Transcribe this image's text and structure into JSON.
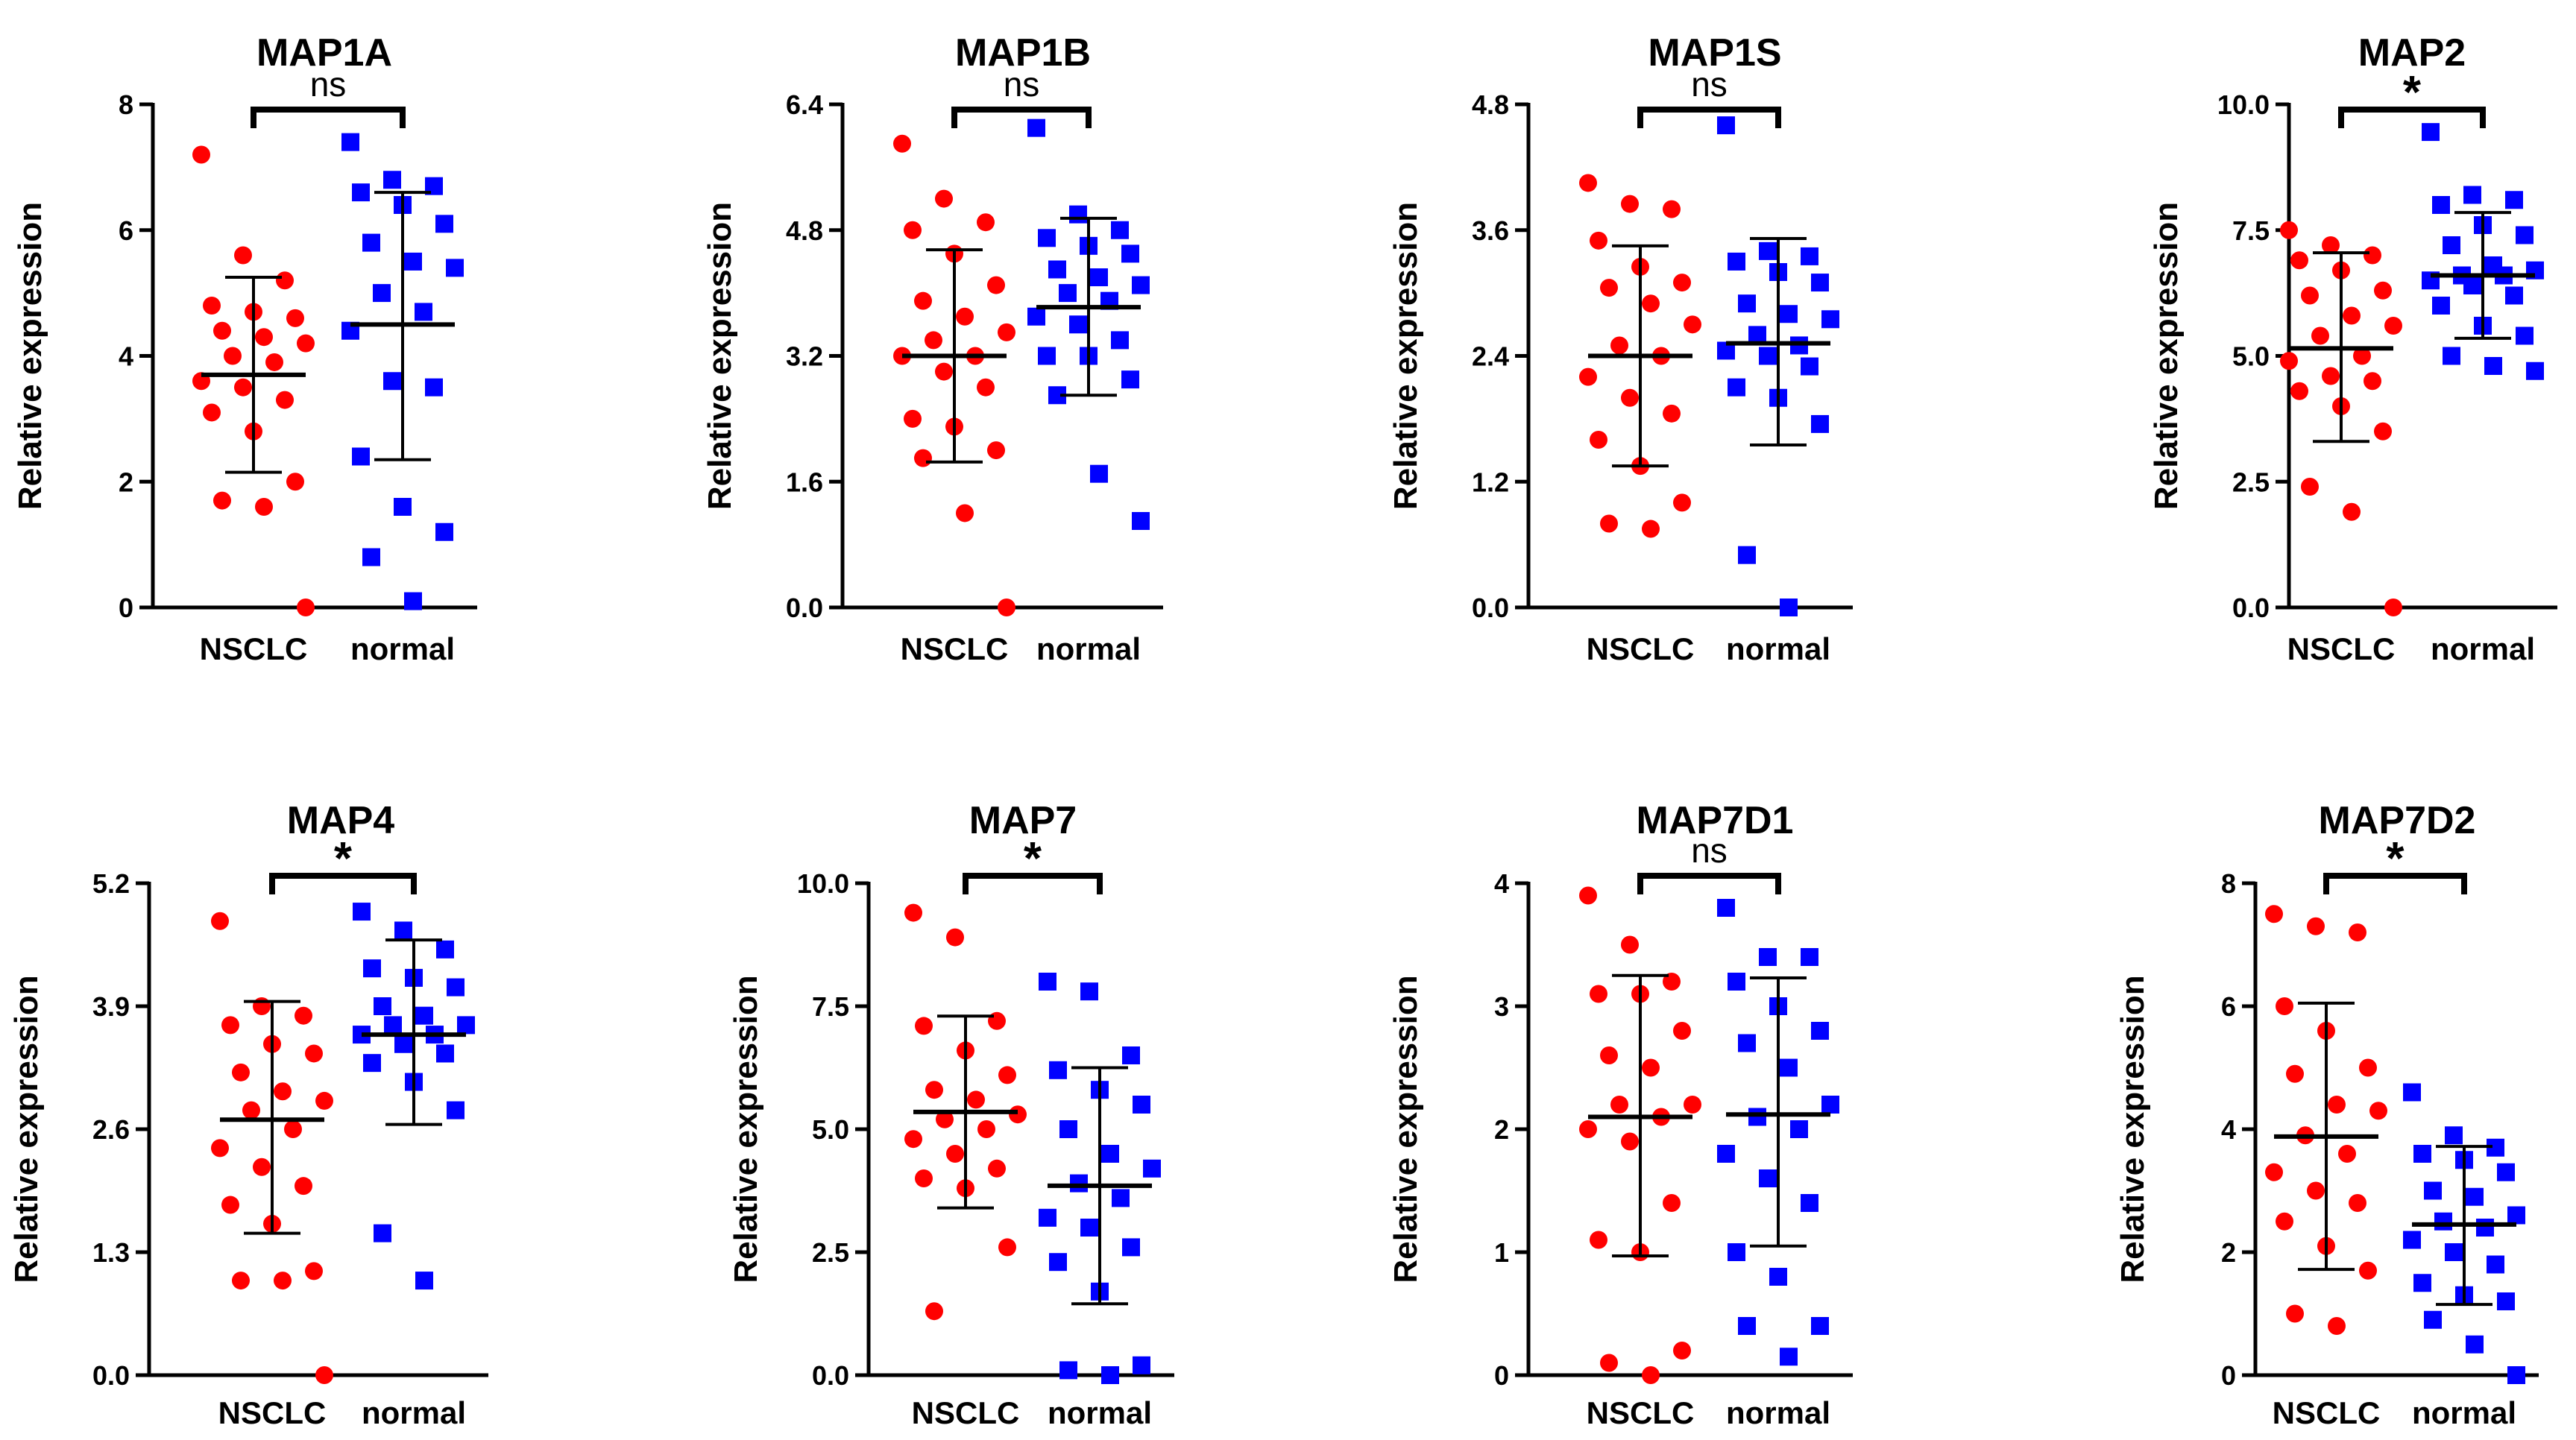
{
  "figure": {
    "y_axis_label": "Relative expression",
    "categories": [
      "NSCLC",
      "normal"
    ]
  },
  "colors": {
    "nsclc": "#ff0000",
    "normal": "#0000ff",
    "axis": "#000000"
  },
  "chart_data": [
    {
      "type": "scatter",
      "title": "MAP1A",
      "significance": "ns",
      "ylim": [
        0,
        8
      ],
      "yticks": [
        "0",
        "2",
        "4",
        "6",
        "8"
      ],
      "ylabel": "Relative expression",
      "categories": [
        "NSCLC",
        "normal"
      ],
      "series": [
        {
          "name": "NSCLC",
          "marker": "circle",
          "mean": 3.7,
          "sd_low": 2.15,
          "sd_high": 5.25,
          "values": [
            7.2,
            5.6,
            5.2,
            4.8,
            4.7,
            4.6,
            4.4,
            4.3,
            4.2,
            4.0,
            3.9,
            3.6,
            3.5,
            3.3,
            3.1,
            2.8,
            2.0,
            1.7,
            1.6,
            0.0
          ]
        },
        {
          "name": "normal",
          "marker": "square",
          "mean": 4.5,
          "sd_low": 2.35,
          "sd_high": 6.6,
          "values": [
            7.4,
            6.8,
            6.7,
            6.6,
            6.4,
            6.1,
            5.8,
            5.5,
            5.4,
            5.0,
            4.7,
            4.4,
            3.6,
            3.5,
            2.4,
            1.6,
            1.2,
            0.8,
            0.1
          ]
        }
      ]
    },
    {
      "type": "scatter",
      "title": "MAP1B",
      "significance": "ns",
      "ylim": [
        0,
        6.4
      ],
      "yticks": [
        "0.0",
        "1.6",
        "3.2",
        "4.8",
        "6.4"
      ],
      "ylabel": "Relative expression",
      "categories": [
        "NSCLC",
        "normal"
      ],
      "series": [
        {
          "name": "NSCLC",
          "marker": "circle",
          "mean": 3.2,
          "sd_low": 1.85,
          "sd_high": 4.55,
          "values": [
            5.9,
            5.2,
            4.9,
            4.8,
            4.5,
            4.1,
            3.9,
            3.7,
            3.5,
            3.4,
            3.2,
            3.2,
            3.0,
            2.8,
            2.4,
            2.3,
            2.0,
            1.9,
            1.2,
            0.0
          ]
        },
        {
          "name": "normal",
          "marker": "square",
          "mean": 3.82,
          "sd_low": 2.7,
          "sd_high": 4.95,
          "values": [
            6.1,
            5.0,
            4.8,
            4.7,
            4.6,
            4.5,
            4.3,
            4.2,
            4.1,
            4.0,
            3.9,
            3.7,
            3.6,
            3.4,
            3.2,
            3.2,
            2.9,
            2.7,
            1.7,
            1.1
          ]
        }
      ]
    },
    {
      "type": "scatter",
      "title": "MAP1S",
      "significance": "ns",
      "ylim": [
        0,
        4.8
      ],
      "yticks": [
        "0.0",
        "1.2",
        "2.4",
        "3.6",
        "4.8"
      ],
      "ylabel": "Relative expression",
      "categories": [
        "NSCLC",
        "normal"
      ],
      "series": [
        {
          "name": "NSCLC",
          "marker": "circle",
          "mean": 2.4,
          "sd_low": 1.35,
          "sd_high": 3.45,
          "values": [
            4.05,
            3.85,
            3.8,
            3.5,
            3.25,
            3.1,
            3.05,
            2.9,
            2.7,
            2.5,
            2.4,
            2.2,
            2.0,
            1.85,
            1.6,
            1.35,
            1.0,
            0.8,
            0.75
          ]
        },
        {
          "name": "normal",
          "marker": "square",
          "mean": 2.52,
          "sd_low": 1.55,
          "sd_high": 3.52,
          "values": [
            4.6,
            3.4,
            3.35,
            3.3,
            3.2,
            3.1,
            2.9,
            2.8,
            2.75,
            2.6,
            2.5,
            2.45,
            2.4,
            2.3,
            2.1,
            2.0,
            1.75,
            0.5,
            0.0
          ]
        }
      ]
    },
    {
      "type": "scatter",
      "title": "MAP2",
      "significance": "*",
      "ylim": [
        0,
        10
      ],
      "yticks": [
        "0.0",
        "2.5",
        "5.0",
        "7.5",
        "10.0"
      ],
      "ylabel": "Relative expression",
      "categories": [
        "NSCLC",
        "normal"
      ],
      "series": [
        {
          "name": "NSCLC",
          "marker": "circle",
          "mean": 5.15,
          "sd_low": 3.3,
          "sd_high": 7.05,
          "values": [
            7.5,
            7.2,
            7.0,
            6.9,
            6.7,
            6.3,
            6.2,
            5.8,
            5.6,
            5.4,
            5.0,
            4.9,
            4.6,
            4.5,
            4.3,
            4.0,
            3.5,
            2.4,
            1.9,
            0.0
          ]
        },
        {
          "name": "normal",
          "marker": "square",
          "mean": 6.6,
          "sd_low": 5.35,
          "sd_high": 7.85,
          "values": [
            9.45,
            8.2,
            8.1,
            8.0,
            7.6,
            7.4,
            7.2,
            6.8,
            6.7,
            6.6,
            6.6,
            6.5,
            6.4,
            6.2,
            6.0,
            5.6,
            5.4,
            5.0,
            4.8,
            4.7
          ]
        }
      ]
    },
    {
      "type": "scatter",
      "title": "MAP4",
      "significance": "*",
      "ylim": [
        0,
        5.2
      ],
      "yticks": [
        "0.0",
        "1.3",
        "2.6",
        "3.9",
        "5.2"
      ],
      "ylabel": "Relative expression",
      "categories": [
        "NSCLC",
        "normal"
      ],
      "series": [
        {
          "name": "NSCLC",
          "marker": "circle",
          "mean": 2.7,
          "sd_low": 1.5,
          "sd_high": 3.95,
          "values": [
            4.8,
            3.9,
            3.8,
            3.7,
            3.5,
            3.4,
            3.2,
            3.0,
            2.9,
            2.8,
            2.6,
            2.4,
            2.2,
            2.0,
            1.8,
            1.6,
            1.1,
            1.0,
            1.0,
            0.0
          ]
        },
        {
          "name": "normal",
          "marker": "square",
          "mean": 3.6,
          "sd_low": 2.65,
          "sd_high": 4.6,
          "values": [
            4.9,
            4.7,
            4.5,
            4.3,
            4.2,
            4.1,
            3.9,
            3.8,
            3.7,
            3.7,
            3.6,
            3.6,
            3.5,
            3.4,
            3.3,
            3.1,
            2.8,
            1.5,
            1.0
          ]
        }
      ]
    },
    {
      "type": "scatter",
      "title": "MAP7",
      "significance": "*",
      "ylim": [
        0,
        10
      ],
      "yticks": [
        "0.0",
        "2.5",
        "5.0",
        "7.5",
        "10.0"
      ],
      "ylabel": "Relative expression",
      "categories": [
        "NSCLC",
        "normal"
      ],
      "series": [
        {
          "name": "NSCLC",
          "marker": "circle",
          "mean": 5.35,
          "sd_low": 3.4,
          "sd_high": 7.3,
          "values": [
            9.4,
            8.9,
            7.2,
            7.1,
            6.6,
            6.1,
            5.8,
            5.6,
            5.3,
            5.2,
            5.0,
            4.8,
            4.5,
            4.2,
            4.0,
            3.8,
            2.6,
            1.3
          ]
        },
        {
          "name": "normal",
          "marker": "square",
          "mean": 3.85,
          "sd_low": 1.45,
          "sd_high": 6.25,
          "values": [
            8.0,
            7.8,
            6.5,
            6.2,
            5.8,
            5.5,
            5.0,
            4.5,
            4.2,
            3.9,
            3.6,
            3.2,
            3.0,
            2.6,
            2.3,
            1.7,
            0.2,
            0.1,
            0.0
          ]
        }
      ]
    },
    {
      "type": "scatter",
      "title": "MAP7D1",
      "significance": "ns",
      "ylim": [
        0,
        4
      ],
      "yticks": [
        "0",
        "1",
        "2",
        "3",
        "4"
      ],
      "ylabel": "Relative expression",
      "categories": [
        "NSCLC",
        "normal"
      ],
      "series": [
        {
          "name": "NSCLC",
          "marker": "circle",
          "mean": 2.1,
          "sd_low": 0.97,
          "sd_high": 3.25,
          "values": [
            3.9,
            3.5,
            3.2,
            3.1,
            3.1,
            2.8,
            2.6,
            2.5,
            2.2,
            2.2,
            2.1,
            2.0,
            1.9,
            1.4,
            1.1,
            1.0,
            0.2,
            0.1,
            0.0
          ]
        },
        {
          "name": "normal",
          "marker": "square",
          "mean": 2.12,
          "sd_low": 1.05,
          "sd_high": 3.23,
          "values": [
            3.8,
            3.4,
            3.4,
            3.2,
            3.0,
            2.8,
            2.7,
            2.5,
            2.2,
            2.1,
            2.0,
            1.8,
            1.6,
            1.4,
            1.0,
            0.8,
            0.4,
            0.4,
            0.15
          ]
        }
      ]
    },
    {
      "type": "scatter",
      "title": "MAP7D2",
      "significance": "*",
      "ylim": [
        0,
        8
      ],
      "yticks": [
        "0",
        "2",
        "4",
        "6",
        "8"
      ],
      "ylabel": "Relative expression",
      "categories": [
        "NSCLC",
        "normal"
      ],
      "series": [
        {
          "name": "NSCLC",
          "marker": "circle",
          "mean": 3.88,
          "sd_low": 1.72,
          "sd_high": 6.05,
          "values": [
            7.5,
            7.3,
            7.2,
            6.0,
            5.6,
            5.0,
            4.9,
            4.4,
            4.3,
            3.9,
            3.6,
            3.3,
            3.0,
            2.8,
            2.5,
            2.1,
            1.7,
            1.0,
            0.8
          ]
        },
        {
          "name": "normal",
          "marker": "square",
          "mean": 2.45,
          "sd_low": 1.15,
          "sd_high": 3.72,
          "values": [
            4.6,
            3.9,
            3.7,
            3.6,
            3.5,
            3.3,
            3.0,
            2.9,
            2.6,
            2.5,
            2.4,
            2.2,
            2.0,
            1.8,
            1.5,
            1.3,
            1.2,
            0.9,
            0.5,
            0.0
          ]
        }
      ]
    }
  ]
}
